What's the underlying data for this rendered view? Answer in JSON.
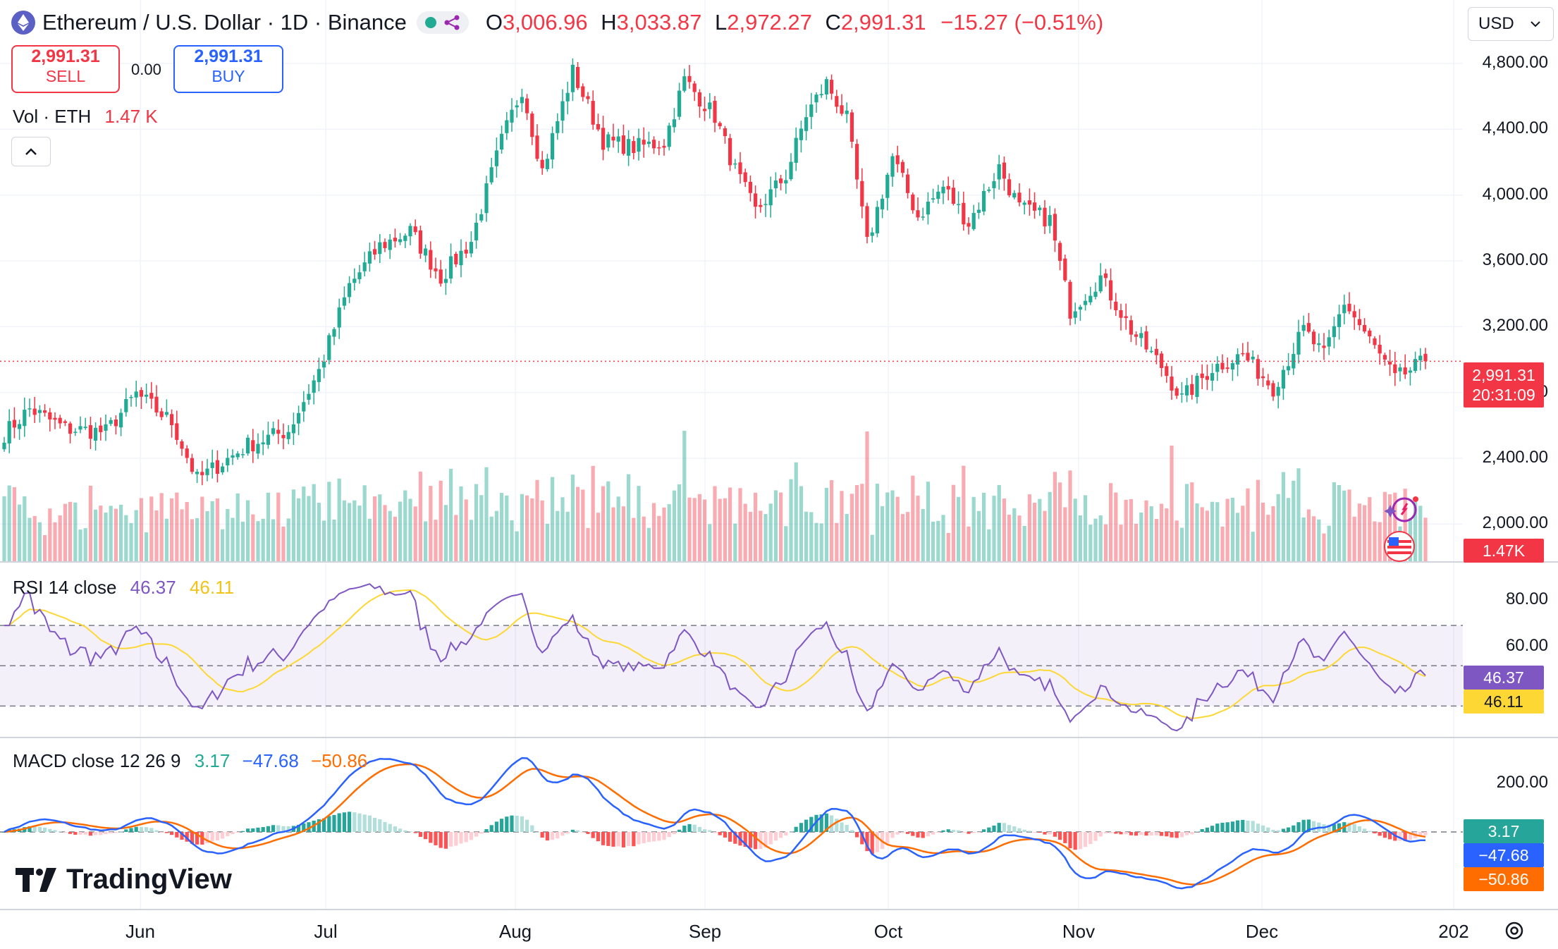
{
  "header": {
    "title": "Ethereum / U.S. Dollar · 1D · Binance",
    "ohlc": {
      "o_label": "O",
      "o": "3,006.96",
      "h_label": "H",
      "h": "3,033.87",
      "l_label": "L",
      "l": "2,972.27",
      "c_label": "C",
      "c": "2,991.31",
      "change": "−15.27 (−0.51%)"
    }
  },
  "trade": {
    "sell_price": "2,991.31",
    "sell_label": "SELL",
    "spread": "0.00",
    "buy_price": "2,991.31",
    "buy_label": "BUY"
  },
  "volume_label": {
    "name": "Vol · ETH",
    "value": "1.47 K"
  },
  "currency": "USD",
  "brand": "TradingView",
  "colors": {
    "up": "#22ab94",
    "down": "#f23645",
    "rsi": "#7e57c2",
    "rsi_ma": "#fdd835",
    "macd": "#2962ff",
    "signal": "#ff6d00"
  },
  "price_tags": {
    "last": "2,991.31",
    "countdown": "20:31:09",
    "volume": "1.47K"
  },
  "rsi_panel": {
    "title": "RSI 14 close",
    "rsi": "46.37",
    "ma": "46.11",
    "axis": [
      "80.00",
      "60.00"
    ],
    "tag_rsi": "46.37",
    "tag_ma": "46.11"
  },
  "macd_panel": {
    "title": "MACD close 12 26 9",
    "hist": "3.17",
    "macd": "−47.68",
    "signal": "−50.86",
    "axis": [
      "200.00"
    ],
    "tag_hist": "3.17",
    "tag_macd": "−47.68",
    "tag_signal": "−50.86"
  },
  "price_axis": [
    "4,800.00",
    "4,400.00",
    "4,000.00",
    "3,600.00",
    "3,200.00",
    "2,800.00",
    "2,400.00",
    "2,000.00"
  ],
  "time_axis": [
    "Jun",
    "Jul",
    "Aug",
    "Sep",
    "Oct",
    "Nov",
    "Dec",
    "202"
  ],
  "chart_data": {
    "type": "candlestick",
    "symbol": "ETHUSD",
    "interval": "1D",
    "ylim": [
      1800,
      5100
    ],
    "x_labels": [
      "Jun",
      "Jul",
      "Aug",
      "Sep",
      "Oct",
      "Nov",
      "Dec"
    ],
    "anchors": [
      {
        "day": 0,
        "close": 2550
      },
      {
        "day": 5,
        "close": 2700
      },
      {
        "day": 12,
        "close": 2580
      },
      {
        "day": 20,
        "close": 2560
      },
      {
        "day": 26,
        "close": 2790
      },
      {
        "day": 33,
        "close": 2620
      },
      {
        "day": 38,
        "close": 2270
      },
      {
        "day": 48,
        "close": 2480
      },
      {
        "day": 56,
        "close": 2570
      },
      {
        "day": 62,
        "close": 2930
      },
      {
        "day": 68,
        "close": 3450
      },
      {
        "day": 74,
        "close": 3690
      },
      {
        "day": 80,
        "close": 3780
      },
      {
        "day": 86,
        "close": 3500
      },
      {
        "day": 92,
        "close": 3720
      },
      {
        "day": 98,
        "close": 4330
      },
      {
        "day": 102,
        "close": 4650
      },
      {
        "day": 106,
        "close": 4150
      },
      {
        "day": 112,
        "close": 4750
      },
      {
        "day": 118,
        "close": 4330
      },
      {
        "day": 124,
        "close": 4290
      },
      {
        "day": 130,
        "close": 4320
      },
      {
        "day": 134,
        "close": 4700
      },
      {
        "day": 140,
        "close": 4480
      },
      {
        "day": 144,
        "close": 4150
      },
      {
        "day": 148,
        "close": 3900
      },
      {
        "day": 154,
        "close": 4120
      },
      {
        "day": 158,
        "close": 4490
      },
      {
        "day": 162,
        "close": 4680
      },
      {
        "day": 166,
        "close": 4460
      },
      {
        "day": 170,
        "close": 3700
      },
      {
        "day": 175,
        "close": 4230
      },
      {
        "day": 180,
        "close": 3870
      },
      {
        "day": 185,
        "close": 4050
      },
      {
        "day": 190,
        "close": 3830
      },
      {
        "day": 196,
        "close": 4170
      },
      {
        "day": 200,
        "close": 3920
      },
      {
        "day": 206,
        "close": 3850
      },
      {
        "day": 210,
        "close": 3300
      },
      {
        "day": 216,
        "close": 3500
      },
      {
        "day": 222,
        "close": 3180
      },
      {
        "day": 228,
        "close": 2960
      },
      {
        "day": 232,
        "close": 2760
      },
      {
        "day": 238,
        "close": 2950
      },
      {
        "day": 244,
        "close": 3030
      },
      {
        "day": 250,
        "close": 2830
      },
      {
        "day": 256,
        "close": 3180
      },
      {
        "day": 260,
        "close": 3020
      },
      {
        "day": 264,
        "close": 3350
      },
      {
        "day": 270,
        "close": 3070
      },
      {
        "day": 274,
        "close": 2880
      },
      {
        "day": 280,
        "close": 2990
      }
    ]
  }
}
